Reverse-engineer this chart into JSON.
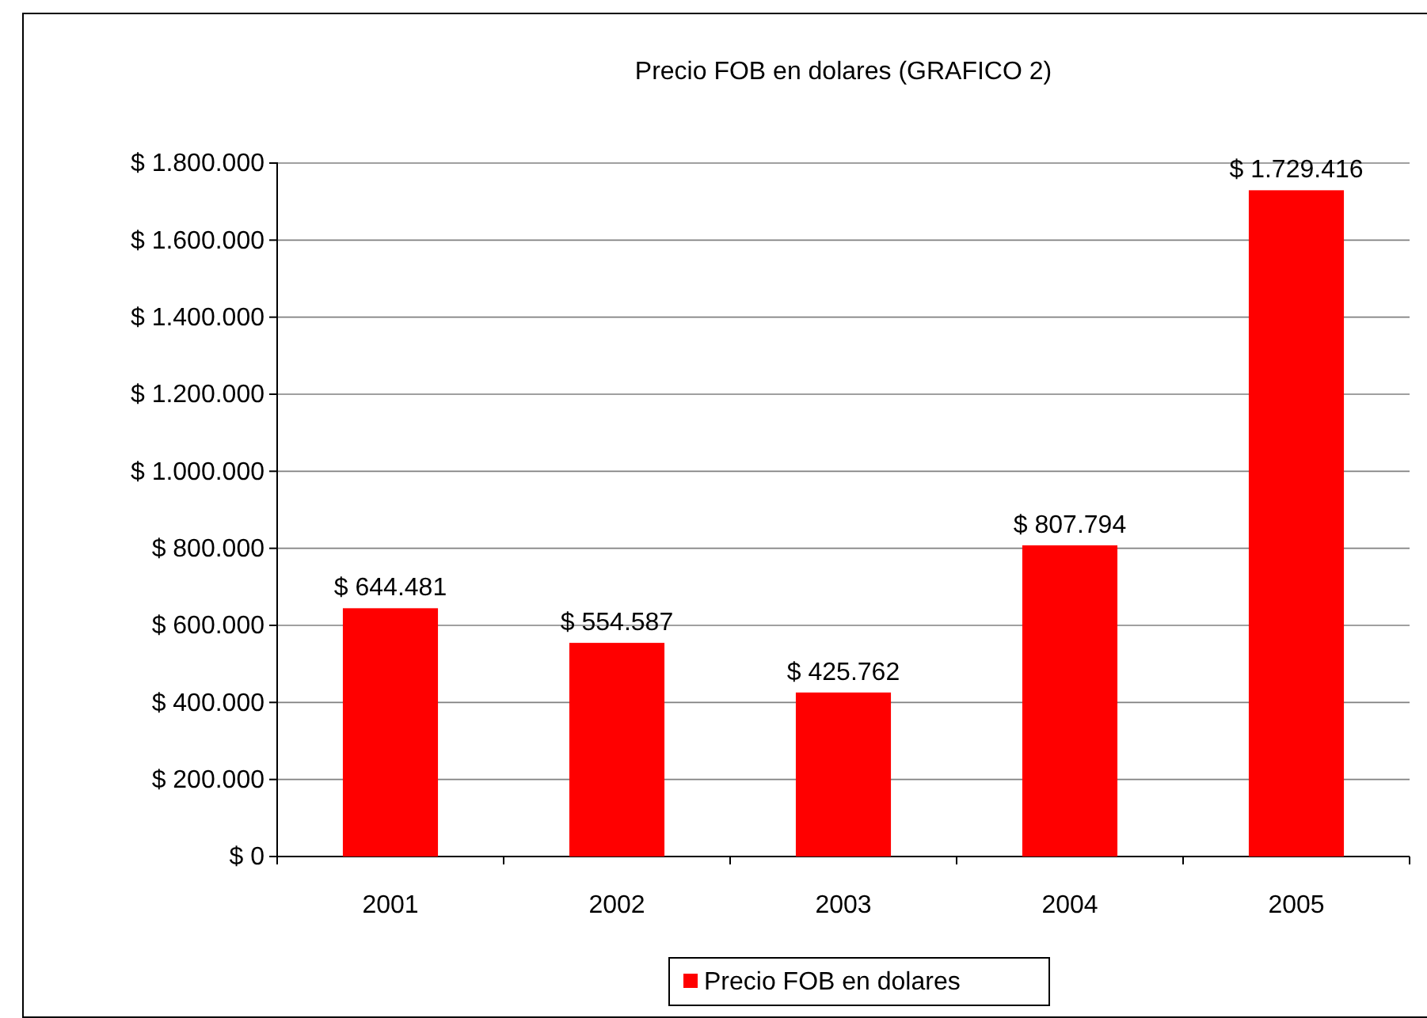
{
  "chart_data": {
    "type": "bar",
    "title": "Precio FOB  en dolares (GRAFICO 2)",
    "categories": [
      "2001",
      "2002",
      "2003",
      "2004",
      "2005"
    ],
    "series": [
      {
        "name": "Precio FOB  en dolares",
        "color": "#ff0000",
        "values": [
          644481,
          554587,
          425762,
          807794,
          1729416
        ],
        "value_labels": [
          "$ 644.481",
          "$ 554.587",
          "$ 425.762",
          "$ 807.794",
          "$ 1.729.416"
        ]
      }
    ],
    "ylim": [
      0,
      1800000
    ],
    "yticks": [
      {
        "value": 0,
        "label": "$ 0"
      },
      {
        "value": 200000,
        "label": "$ 200.000"
      },
      {
        "value": 400000,
        "label": "$ 400.000"
      },
      {
        "value": 600000,
        "label": "$ 600.000"
      },
      {
        "value": 800000,
        "label": "$ 800.000"
      },
      {
        "value": 1000000,
        "label": "$ 1.000.000"
      },
      {
        "value": 1200000,
        "label": "$ 1.200.000"
      },
      {
        "value": 1400000,
        "label": "$ 1.400.000"
      },
      {
        "value": 1600000,
        "label": "$ 1.600.000"
      },
      {
        "value": 1800000,
        "label": "$ 1.800.000"
      }
    ],
    "grid": "y",
    "legend": "bottom"
  }
}
